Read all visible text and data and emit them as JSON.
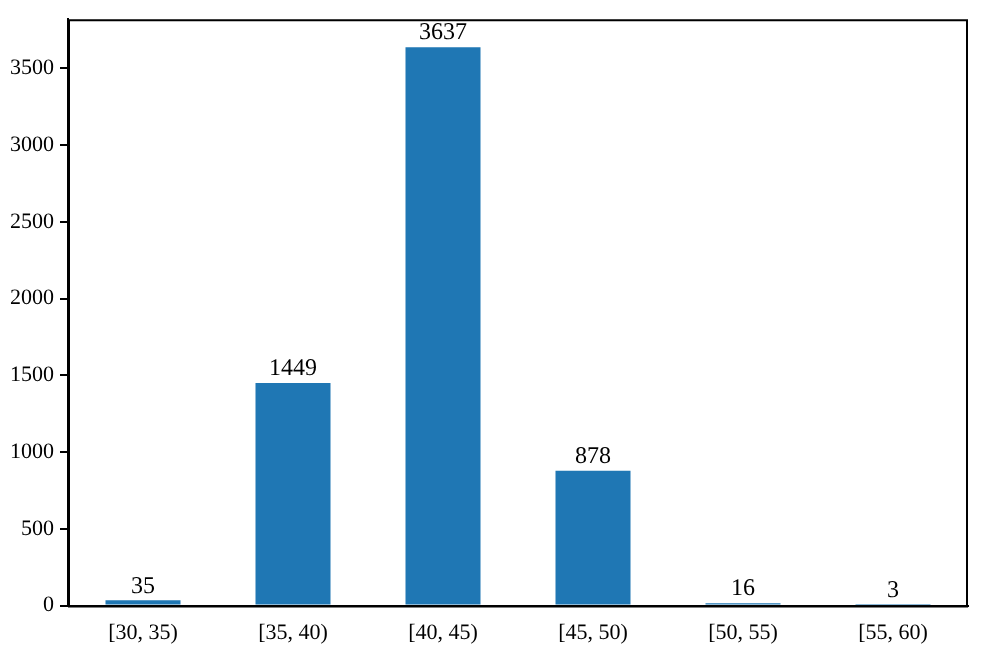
{
  "chart_data": {
    "type": "bar",
    "categories": [
      "[30, 35)",
      "[35, 40)",
      "[40, 45)",
      "[45, 50)",
      "[50, 55)",
      "[55, 60)"
    ],
    "values": [
      35,
      1449,
      3637,
      878,
      16,
      3
    ],
    "color": "#1f77b4",
    "ylim": [
      0,
      3819
    ],
    "yticks": [
      0,
      500,
      1000,
      1500,
      2000,
      2500,
      3000,
      3500
    ],
    "grid": false,
    "legend": false,
    "data_labels": true
  }
}
